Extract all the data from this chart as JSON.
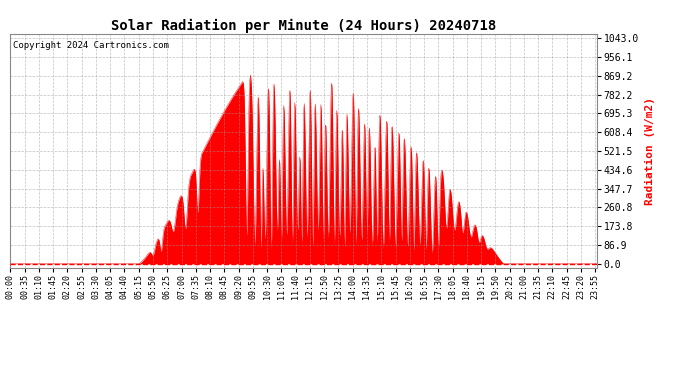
{
  "title": "Solar Radiation per Minute (24 Hours) 20240718",
  "copyright_text": "Copyright 2024 Cartronics.com",
  "ylabel": "Radiation (W/m2)",
  "ylabel_color": "#FF0000",
  "title_color": "#000000",
  "background_color": "#ffffff",
  "plot_bg_color": "#ffffff",
  "grid_color": "#999999",
  "fill_color": "#FF0000",
  "line_color": "#FF0000",
  "hline_color": "#FF0000",
  "ytick_labels": [
    0.0,
    86.9,
    173.8,
    260.8,
    347.7,
    434.6,
    521.5,
    608.4,
    695.3,
    782.2,
    869.2,
    956.1,
    1043.0
  ],
  "ymax": 1043.0,
  "ymin": 0.0,
  "sunrise_min": 315,
  "sunset_min": 1210,
  "peak_min": 710,
  "figwidth": 6.9,
  "figheight": 3.75,
  "dpi": 100
}
